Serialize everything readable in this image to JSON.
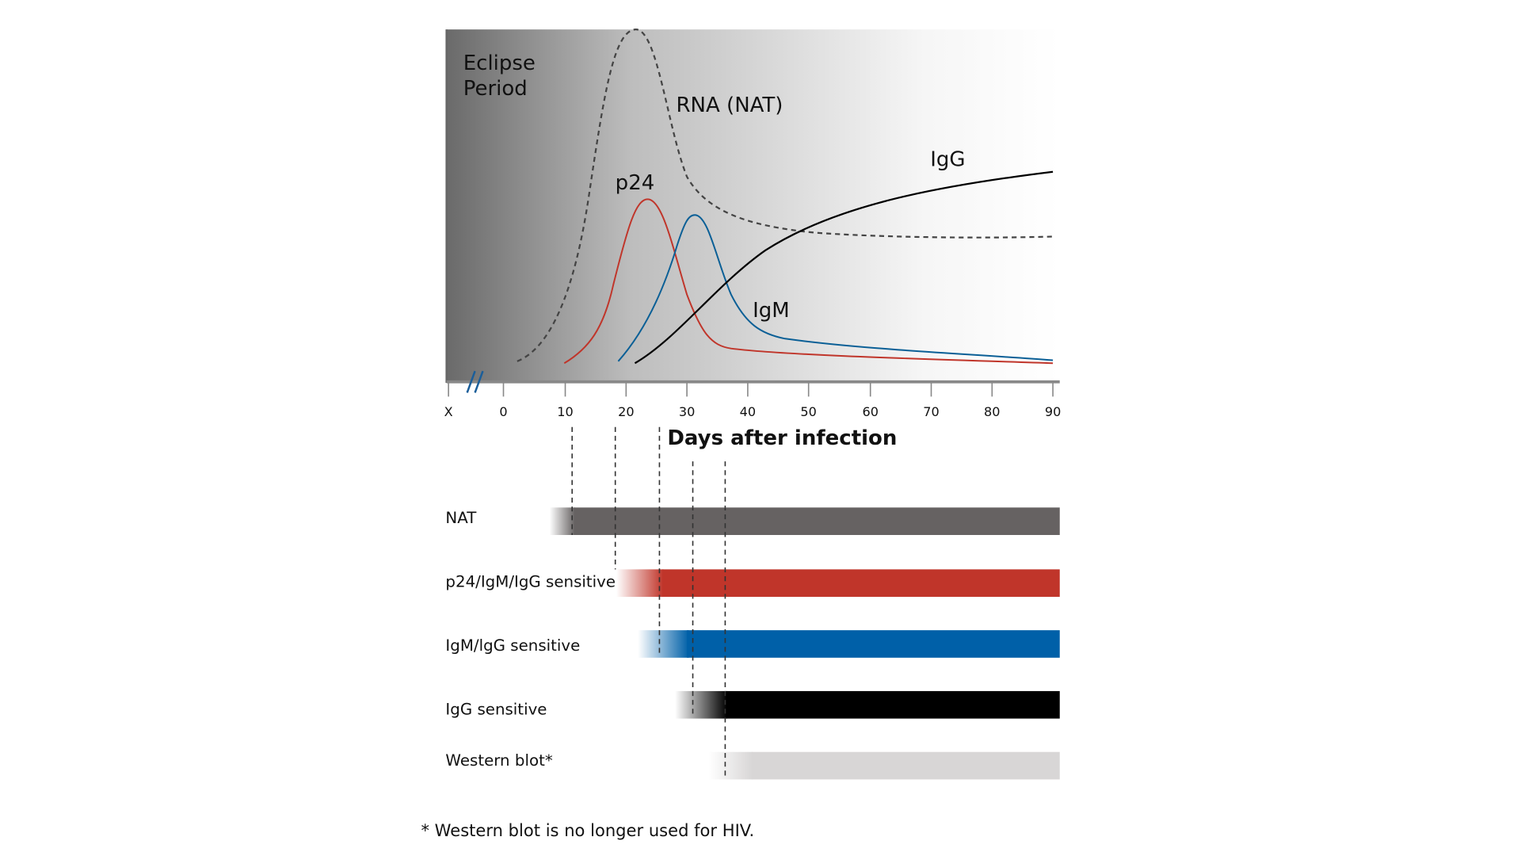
{
  "labels": {
    "eclipse_line1": "Eclipse",
    "eclipse_line2": "Period",
    "rna": "RNA (NAT)",
    "p24": "p24",
    "igm": "IgM",
    "igg": "IgG",
    "x_axis_title": "Days after infection",
    "footnote": "* Western blot is no longer used for HIV."
  },
  "x_ticks": [
    "X",
    "0",
    "10",
    "20",
    "30",
    "40",
    "50",
    "60",
    "70",
    "80",
    "90"
  ],
  "tests": [
    {
      "label": "NAT",
      "color": "#666262"
    },
    {
      "label": "p24/IgM/IgG sensitive",
      "color": "#c0352a"
    },
    {
      "label": "IgM/lgG sensitive",
      "color": "#0060a8"
    },
    {
      "label": "IgG sensitive",
      "color": "#000000"
    },
    {
      "label": "Western blot*",
      "color": "#d8d6d6"
    }
  ],
  "colors": {
    "rna": "#444444",
    "p24": "#c0352a",
    "igm": "#0a5f96",
    "igg": "#000000",
    "break_mark": "#1a5e9a"
  }
}
